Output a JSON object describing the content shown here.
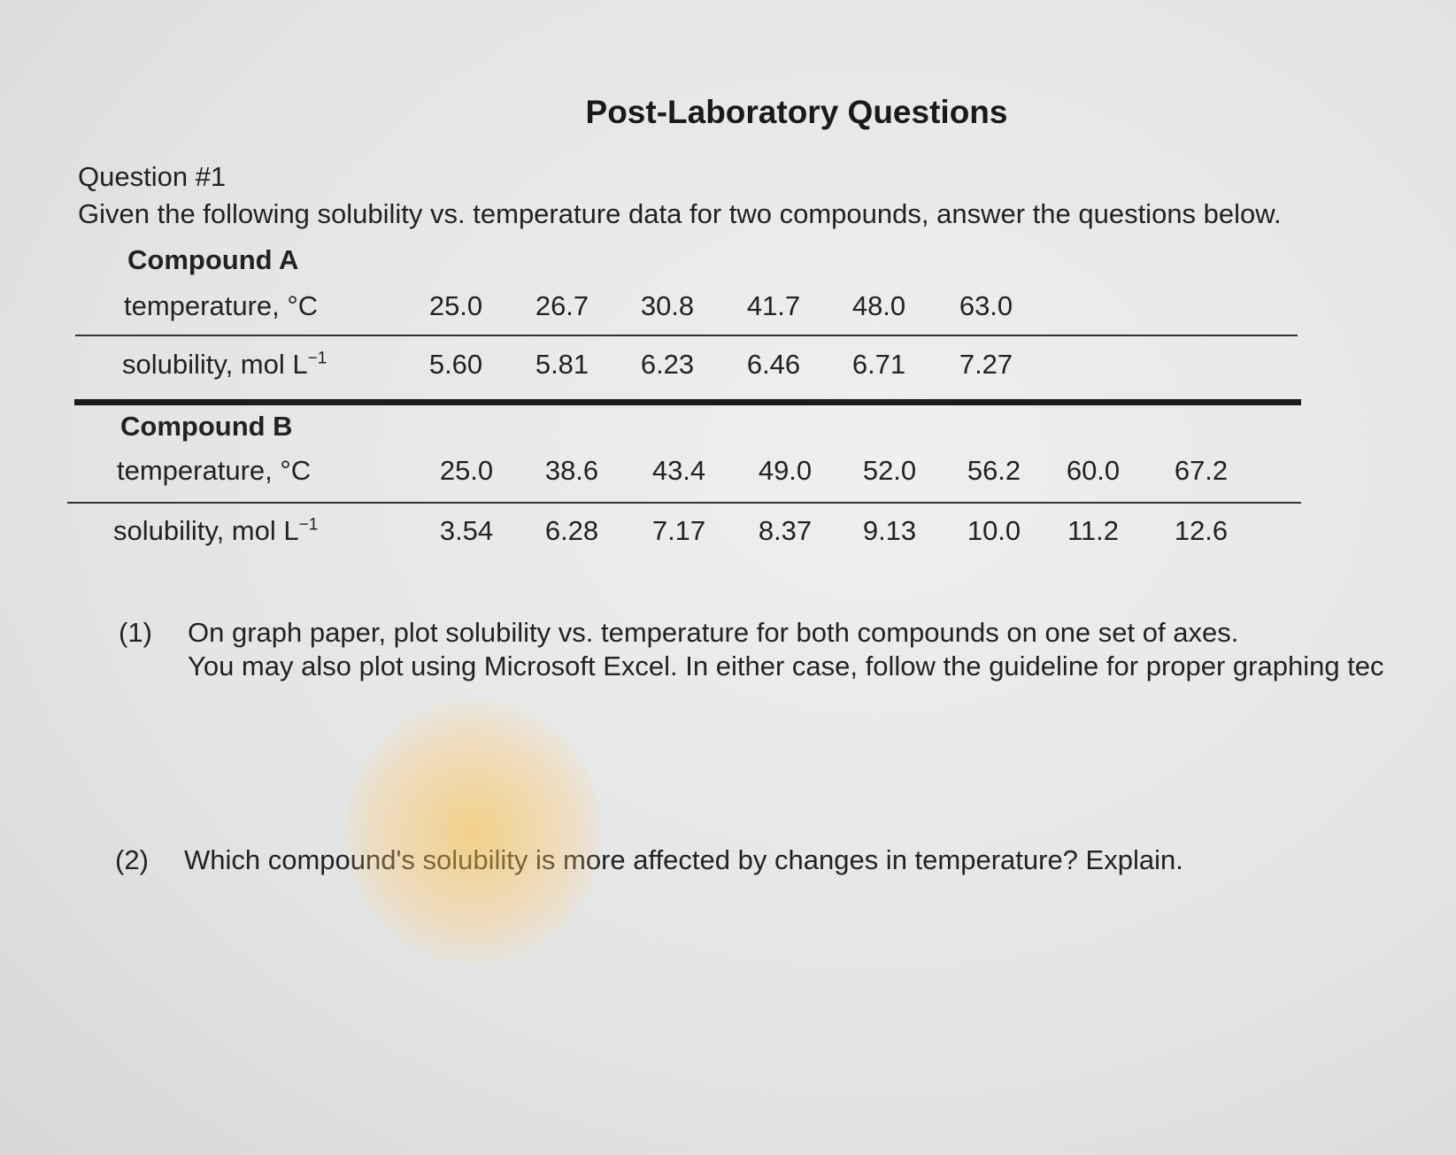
{
  "header": {
    "title": "Post-Laboratory Questions",
    "question": "Question #1",
    "intro": "Given the following solubility vs. temperature data for two compounds, answer the questions below."
  },
  "tables": [
    {
      "name": "Compound A",
      "rows": [
        {
          "label": "temperature, °C",
          "values": [
            "25.0",
            "26.7",
            "30.8",
            "41.7",
            "48.0",
            "63.0"
          ]
        },
        {
          "label": "solubility, mol L",
          "exponent": "−1",
          "values": [
            "5.60",
            "5.81",
            "6.23",
            "6.46",
            "6.71",
            "7.27"
          ]
        }
      ]
    },
    {
      "name": "Compound B",
      "rows": [
        {
          "label": "temperature, °C",
          "values": [
            "25.0",
            "38.6",
            "43.4",
            "49.0",
            "52.0",
            "56.2",
            "60.0",
            "67.2"
          ]
        },
        {
          "label": "solubility, mol L",
          "exponent": "−1",
          "values": [
            "3.54",
            "6.28",
            "7.17",
            "8.37",
            "9.13",
            "10.0",
            "11.2",
            "12.6"
          ]
        }
      ]
    }
  ],
  "questions": [
    {
      "number": "(1)",
      "lines": [
        "On graph paper, plot solubility vs. temperature for both compounds on one set of axes.",
        "You may also plot using Microsoft Excel. In either case, follow the guideline for proper graphing tec"
      ]
    },
    {
      "number": "(2)",
      "lines": [
        "Which compound's solubility is more affected by changes in temperature?  Explain."
      ]
    }
  ]
}
